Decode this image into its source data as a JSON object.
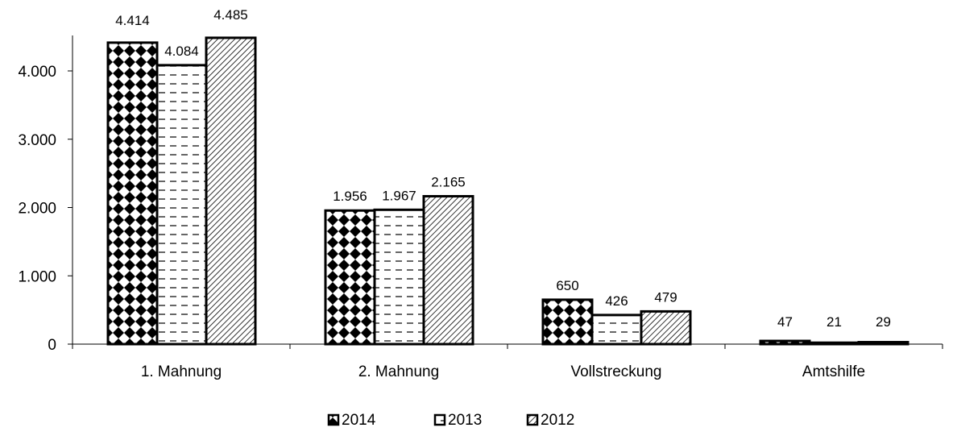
{
  "chart_data": {
    "type": "bar",
    "categories": [
      "1. Mahnung",
      "2. Mahnung",
      "Vollstreckung",
      "Amtshilfe"
    ],
    "series": [
      {
        "name": "2014",
        "values": [
          4414,
          1956,
          650,
          47
        ],
        "labels": [
          "4.414",
          "1.956",
          "650",
          "47"
        ],
        "pattern": "diamond-checker"
      },
      {
        "name": "2013",
        "values": [
          4084,
          1967,
          426,
          21
        ],
        "labels": [
          "4.084",
          "1.967",
          "426",
          "21"
        ],
        "pattern": "dashes"
      },
      {
        "name": "2012",
        "values": [
          4485,
          2165,
          479,
          29
        ],
        "labels": [
          "4.485",
          "2.165",
          "479",
          "29"
        ],
        "pattern": "diagonal-hatch"
      }
    ],
    "yticks": [
      0,
      1000,
      2000,
      3000,
      4000
    ],
    "ytick_labels": [
      "0",
      "1.000",
      "2.000",
      "3.000",
      "4.000"
    ],
    "ylim": [
      0,
      4500
    ],
    "grid": false,
    "legend_position": "bottom-center",
    "colors": {
      "ink": "#000000",
      "fill": "#ffffff"
    }
  }
}
